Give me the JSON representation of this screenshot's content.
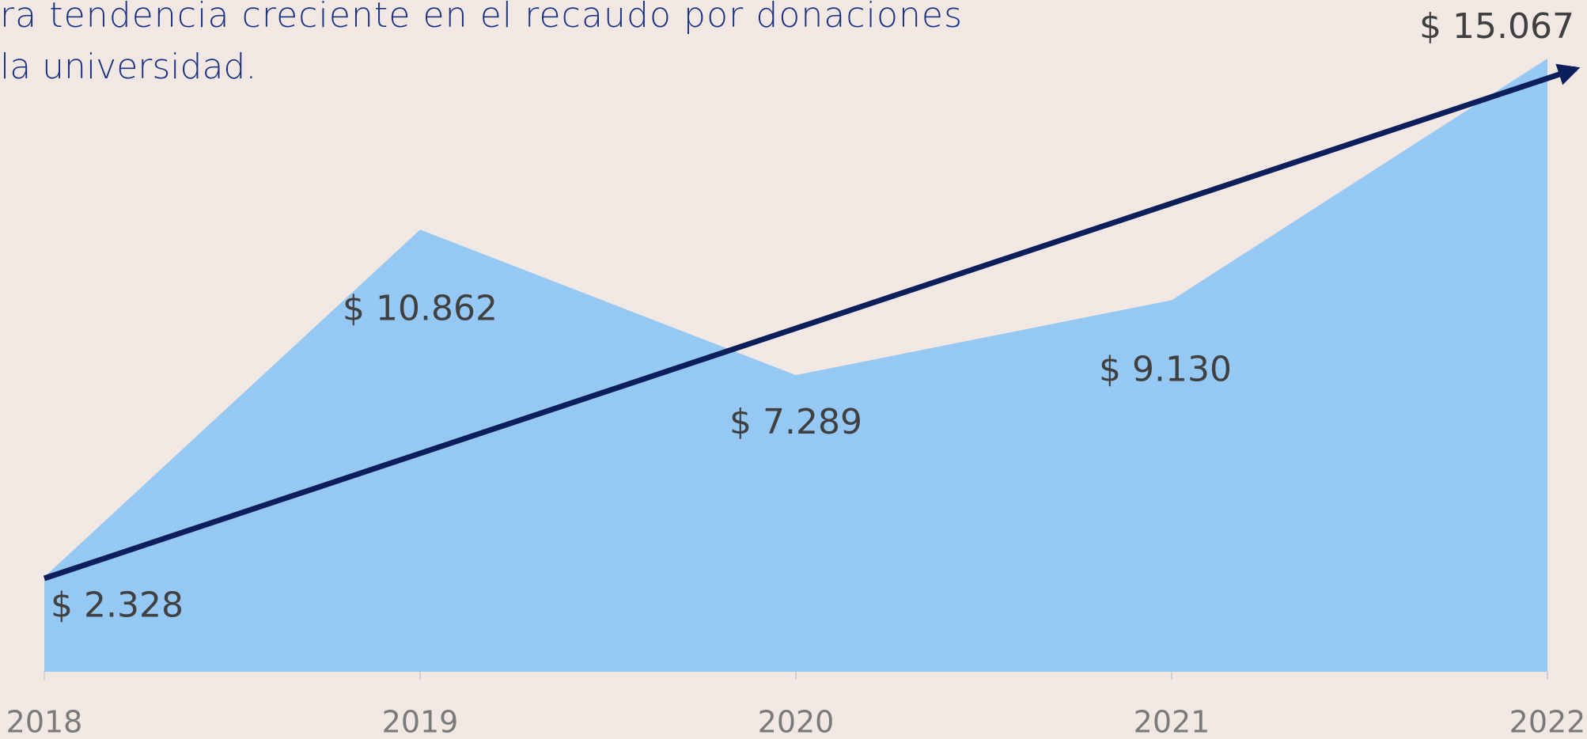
{
  "chart_data": {
    "type": "area",
    "annotations": [
      "ra tendencia creciente en el recaudo por donaciones",
      "la universidad."
    ],
    "categories": [
      "2018",
      "2019",
      "2020",
      "2021",
      "2022"
    ],
    "values": [
      2328,
      10862,
      7289,
      9130,
      15067
    ],
    "value_labels": [
      "$ 2.328",
      "$ 10.862",
      "$ 7.289",
      "$ 9.130",
      "$ 15.067"
    ],
    "color": "#95c8f2"
  }
}
